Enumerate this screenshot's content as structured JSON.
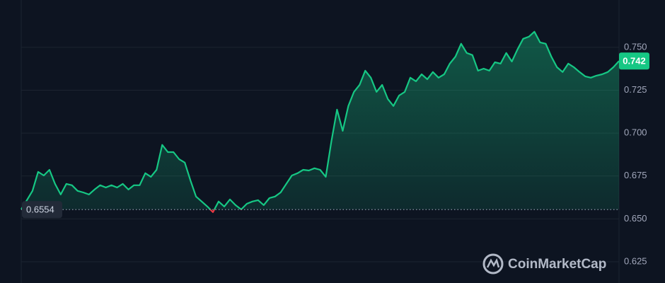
{
  "chart_data": {
    "type": "line",
    "series": [
      {
        "color": "#16c784",
        "down_color": "#ea3943",
        "values": [
          0.6555,
          0.6609,
          0.6663,
          0.6774,
          0.6753,
          0.6786,
          0.6704,
          0.6642,
          0.6704,
          0.6696,
          0.6663,
          0.6654,
          0.6642,
          0.6671,
          0.6696,
          0.6683,
          0.6696,
          0.6683,
          0.6704,
          0.6671,
          0.6696,
          0.6696,
          0.6766,
          0.6745,
          0.6786,
          0.6931,
          0.6889,
          0.6889,
          0.6848,
          0.6828,
          0.6724,
          0.663,
          0.6601,
          0.6572,
          0.6539,
          0.6601,
          0.6572,
          0.6613,
          0.658,
          0.6555,
          0.6588,
          0.6601,
          0.6609,
          0.658,
          0.6621,
          0.663,
          0.6654,
          0.6704,
          0.6753,
          0.6766,
          0.6786,
          0.6782,
          0.6795,
          0.6786,
          0.6745,
          0.6951,
          0.7137,
          0.7013,
          0.7158,
          0.724,
          0.7281,
          0.7364,
          0.7323,
          0.724,
          0.7281,
          0.7199,
          0.7158,
          0.7219,
          0.724,
          0.7323,
          0.7302,
          0.7343,
          0.7314,
          0.7356,
          0.7323,
          0.7343,
          0.7405,
          0.7446,
          0.7521,
          0.7467,
          0.7455,
          0.7364,
          0.7376,
          0.7364,
          0.7413,
          0.7405,
          0.7467,
          0.7417,
          0.7488,
          0.755,
          0.7562,
          0.7591,
          0.7529,
          0.7521,
          0.7446,
          0.7384,
          0.7356,
          0.7405,
          0.7384,
          0.7356,
          0.7331,
          0.7323,
          0.7335,
          0.7343,
          0.7356,
          0.7384,
          0.742
        ]
      }
    ],
    "ylim": [
      0.6126,
      0.7776
    ],
    "yticks": [
      {
        "value": 0.625,
        "label": "0.625"
      },
      {
        "value": 0.65,
        "label": "0.650"
      },
      {
        "value": 0.675,
        "label": "0.675"
      },
      {
        "value": 0.7,
        "label": "0.700"
      },
      {
        "value": 0.725,
        "label": "0.725"
      },
      {
        "value": 0.75,
        "label": "0.750"
      }
    ],
    "grid": true,
    "reference_price": 0.6554,
    "last_price": 0.742,
    "watermark": "CoinMarketCap"
  }
}
